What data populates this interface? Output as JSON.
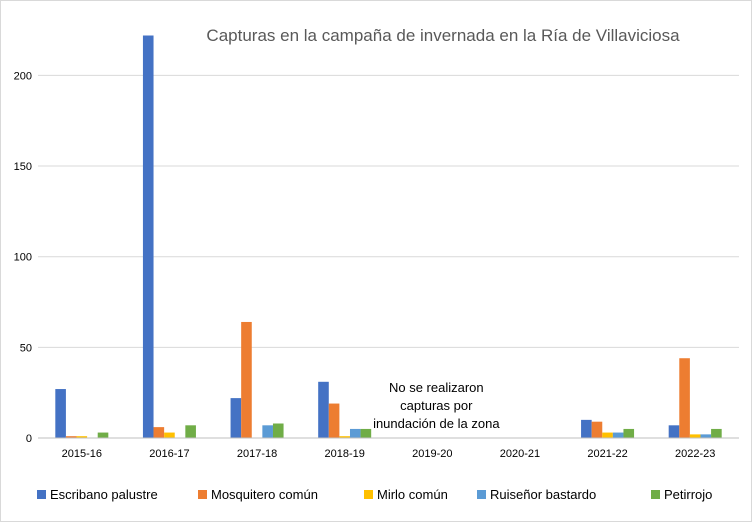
{
  "chart_data": {
    "type": "bar",
    "title": "Capturas en la campaña de invernada en la Ría de Villaviciosa",
    "categories": [
      "2015-16",
      "2016-17",
      "2017-18",
      "2018-19",
      "2019-20",
      "2020-21",
      "2021-22",
      "2022-23"
    ],
    "yticks": [
      "0",
      "50",
      "100",
      "150",
      "200"
    ],
    "ylim": [
      0,
      230
    ],
    "grid": true,
    "legend_position": "bottom",
    "series": [
      {
        "name": "Escribano palustre",
        "color": "#4472c4",
        "values": [
          27,
          222,
          22,
          31,
          null,
          null,
          10,
          7
        ]
      },
      {
        "name": "Mosquitero común",
        "color": "#ed7d31",
        "values": [
          1,
          6,
          64,
          19,
          null,
          null,
          9,
          44
        ]
      },
      {
        "name": "Mirlo común",
        "color": "#ffc000",
        "values": [
          1,
          3,
          0,
          1,
          null,
          null,
          3,
          2
        ]
      },
      {
        "name": "Ruiseñor bastardo",
        "color": "#5b9bd5",
        "values": [
          0,
          0,
          7,
          5,
          null,
          null,
          3,
          2
        ]
      },
      {
        "name": "Petirrojo",
        "color": "#70ad47",
        "values": [
          3,
          7,
          8,
          5,
          null,
          null,
          5,
          5
        ]
      }
    ],
    "annotation": {
      "category": "2019-20",
      "lines": [
        "No se realizaron",
        "capturas por",
        "inundación de la zona"
      ]
    }
  }
}
